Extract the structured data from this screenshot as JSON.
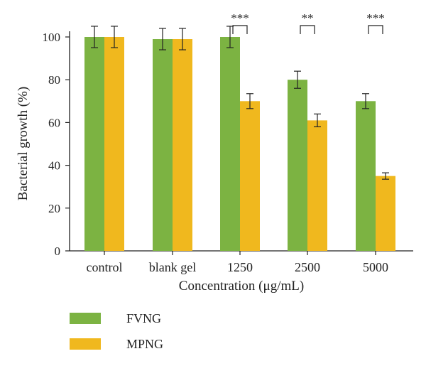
{
  "chart_data": {
    "type": "bar",
    "title": "",
    "xlabel": "Concentration (μg/mL)",
    "ylabel": "Bacterial growth (%)",
    "ylim": [
      0,
      100
    ],
    "yticks": [
      "0",
      "20",
      "40",
      "60",
      "80",
      "100"
    ],
    "categories": [
      "control",
      "blank gel",
      "1250",
      "2500",
      "5000"
    ],
    "series": [
      {
        "name": "FVNG",
        "color": "#7cb342",
        "values": [
          100,
          99,
          100,
          80,
          70
        ],
        "errors": [
          5,
          5,
          5,
          4,
          3.5
        ]
      },
      {
        "name": "MPNG",
        "color": "#f0b81e",
        "values": [
          100,
          99,
          70,
          61,
          35
        ],
        "errors": [
          5,
          5,
          3.5,
          3,
          1.5
        ]
      }
    ],
    "significance": [
      "",
      "",
      "***",
      "**",
      "***"
    ],
    "grid": false,
    "legend_position": "bottom-left"
  }
}
